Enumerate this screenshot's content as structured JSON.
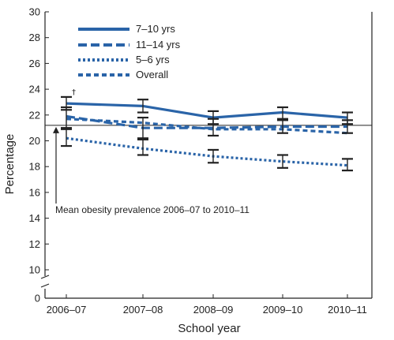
{
  "chart_data": {
    "type": "line",
    "xlabel": "School year",
    "ylabel": "Percentage",
    "categories": [
      "2006–07",
      "2007–08",
      "2008–09",
      "2009–10",
      "2010–11"
    ],
    "y_ticks": [
      "30",
      "28",
      "26",
      "24",
      "22",
      "20",
      "18",
      "16",
      "14",
      "12",
      "10",
      "0"
    ],
    "ylim": [
      10,
      30
    ],
    "axis_break": true,
    "reference_line": {
      "value": 21.2,
      "label": "Mean obesity prevalence 2006–07 to 2010–11"
    },
    "footnote_mark": "†",
    "legend_position": "top-left",
    "color": "#2a64a8",
    "series": [
      {
        "name": "7–10 yrs",
        "style": "solid",
        "values": [
          22.9,
          22.7,
          21.8,
          22.2,
          21.8
        ]
      },
      {
        "name": "11–14 yrs",
        "style": "dashed",
        "values": [
          21.9,
          21.0,
          21.0,
          21.1,
          21.1
        ]
      },
      {
        "name": "5–6 yrs",
        "style": "dotted",
        "values": [
          20.2,
          19.4,
          18.8,
          18.4,
          18.1
        ]
      },
      {
        "name": "Overall",
        "style": "dash-dot",
        "values": [
          21.7,
          21.4,
          20.9,
          20.9,
          20.6
        ]
      }
    ],
    "error_bars": [
      {
        "series": "7–10 yrs",
        "x_index": 0,
        "low": 22.4,
        "high": 23.4
      },
      {
        "series": "7–10 yrs",
        "x_index": 1,
        "low": 22.2,
        "high": 23.2
      },
      {
        "series": "7–10 yrs",
        "x_index": 2,
        "low": 21.3,
        "high": 22.3
      },
      {
        "series": "7–10 yrs",
        "x_index": 3,
        "low": 21.7,
        "high": 22.6
      },
      {
        "series": "7–10 yrs",
        "x_index": 4,
        "low": 21.3,
        "high": 22.2
      },
      {
        "series": "11–14 yrs",
        "x_index": 0,
        "low": 21.0,
        "high": 22.6
      },
      {
        "series": "11–14 yrs",
        "x_index": 1,
        "low": 20.2,
        "high": 21.8
      },
      {
        "series": "11–14 yrs",
        "x_index": 2,
        "low": 20.4,
        "high": 21.7
      },
      {
        "series": "11–14 yrs",
        "x_index": 3,
        "low": 20.6,
        "high": 21.6
      },
      {
        "series": "11–14 yrs",
        "x_index": 4,
        "low": 20.6,
        "high": 21.6
      },
      {
        "series": "5–6 yrs",
        "x_index": 0,
        "low": 19.6,
        "high": 20.9
      },
      {
        "series": "5–6 yrs",
        "x_index": 1,
        "low": 18.9,
        "high": 20.1
      },
      {
        "series": "5–6 yrs",
        "x_index": 2,
        "low": 18.3,
        "high": 19.3
      },
      {
        "series": "5–6 yrs",
        "x_index": 3,
        "low": 17.9,
        "high": 18.9
      },
      {
        "series": "5–6 yrs",
        "x_index": 4,
        "low": 17.7,
        "high": 18.6
      }
    ]
  }
}
